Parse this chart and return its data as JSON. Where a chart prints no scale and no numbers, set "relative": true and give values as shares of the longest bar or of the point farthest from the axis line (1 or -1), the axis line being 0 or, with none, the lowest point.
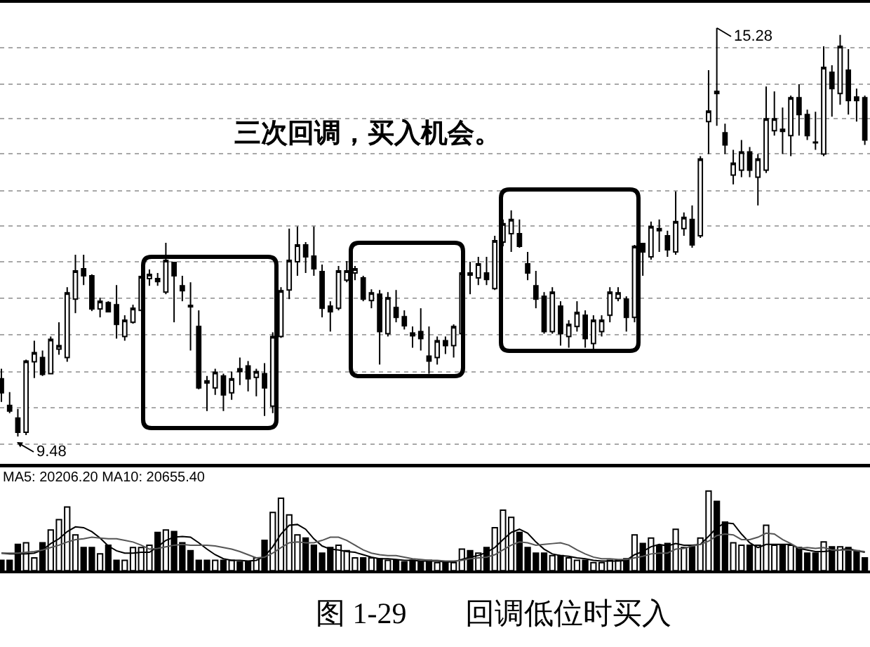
{
  "chart_data": [
    {
      "type": "candlestick",
      "categories": [
        null,
        null,
        null,
        null,
        null,
        null,
        null,
        null,
        null,
        null,
        null,
        null,
        null,
        null,
        null,
        null,
        null,
        null,
        null,
        null,
        null,
        null,
        null,
        null,
        null,
        null,
        null,
        null,
        null,
        null,
        null,
        null,
        null,
        null,
        null,
        null,
        null,
        null,
        null,
        null,
        null,
        null,
        null,
        null,
        null,
        null,
        null,
        null,
        null,
        null,
        null,
        null,
        null,
        null,
        null,
        null,
        null,
        null,
        null,
        null,
        null,
        null,
        null,
        null,
        null,
        null,
        null,
        null,
        null,
        null,
        null,
        null,
        null,
        null,
        null,
        null,
        null,
        null,
        null,
        null,
        null,
        null,
        null,
        null,
        null,
        null,
        null,
        null,
        null,
        null,
        null,
        null,
        null,
        null,
        null,
        null,
        null,
        null,
        null,
        null,
        null,
        null,
        null,
        null,
        null,
        null
      ],
      "ohlc": [
        [
          10.3,
          10.44,
          9.97,
          10.1
        ],
        [
          9.92,
          10.11,
          9.81,
          9.84
        ],
        [
          9.74,
          9.87,
          9.48,
          9.54
        ],
        [
          9.54,
          10.57,
          9.5,
          10.55
        ],
        [
          10.54,
          10.84,
          10.31,
          10.67
        ],
        [
          10.6,
          10.7,
          10.34,
          10.36
        ],
        [
          10.37,
          10.9,
          10.36,
          10.86
        ],
        [
          10.72,
          11.1,
          10.64,
          10.77
        ],
        [
          10.6,
          11.6,
          10.54,
          11.52
        ],
        [
          11.43,
          12.06,
          11.23,
          11.83
        ],
        [
          11.86,
          12.06,
          11.63,
          11.76
        ],
        [
          11.76,
          11.78,
          11.26,
          11.29
        ],
        [
          11.29,
          11.45,
          11.17,
          11.4
        ],
        [
          11.38,
          11.4,
          11.24,
          11.25
        ],
        [
          11.35,
          11.63,
          10.87,
          11.07
        ],
        [
          10.9,
          11.2,
          10.84,
          11.13
        ],
        [
          11.1,
          11.35,
          11.08,
          11.3
        ],
        [
          11.27,
          11.76,
          11.26,
          11.75
        ],
        [
          11.72,
          11.85,
          11.62,
          11.78
        ],
        [
          11.72,
          11.8,
          11.62,
          11.68
        ],
        [
          11.53,
          12.23,
          11.5,
          11.98
        ],
        [
          11.95,
          11.96,
          11.1,
          11.76
        ],
        [
          11.62,
          11.76,
          11.4,
          11.55
        ],
        [
          11.34,
          11.67,
          10.7,
          11.32
        ],
        [
          11.04,
          11.27,
          10.15,
          10.17
        ],
        [
          10.27,
          10.34,
          9.84,
          10.24
        ],
        [
          10.17,
          10.44,
          10.07,
          10.39
        ],
        [
          10.34,
          10.37,
          9.84,
          10.07
        ],
        [
          10.1,
          10.4,
          10.0,
          10.3
        ],
        [
          10.44,
          10.6,
          10.21,
          10.4
        ],
        [
          10.48,
          10.55,
          10.12,
          10.3
        ],
        [
          10.32,
          10.44,
          10.05,
          10.4
        ],
        [
          10.37,
          10.52,
          9.77,
          10.17
        ],
        [
          9.91,
          10.96,
          9.81,
          10.9
        ],
        [
          10.9,
          11.6,
          10.88,
          11.55
        ],
        [
          11.56,
          12.43,
          11.43,
          11.98
        ],
        [
          11.96,
          12.46,
          11.76,
          12.2
        ],
        [
          12.2,
          12.24,
          11.8,
          12.03
        ],
        [
          12.04,
          12.46,
          11.76,
          11.86
        ],
        [
          11.82,
          11.92,
          11.17,
          11.3
        ],
        [
          11.33,
          11.4,
          10.97,
          11.25
        ],
        [
          11.3,
          11.9,
          11.27,
          11.83
        ],
        [
          11.7,
          11.97,
          11.67,
          11.83
        ],
        [
          11.8,
          11.9,
          11.7,
          11.86
        ],
        [
          11.73,
          11.76,
          11.4,
          11.43
        ],
        [
          11.41,
          11.57,
          11.3,
          11.52
        ],
        [
          11.5,
          11.56,
          10.5,
          10.97
        ],
        [
          10.94,
          11.53,
          10.9,
          11.45
        ],
        [
          11.31,
          11.56,
          11.1,
          11.17
        ],
        [
          11.18,
          11.27,
          11.0,
          11.05
        ],
        [
          10.95,
          11.04,
          10.74,
          10.91
        ],
        [
          10.97,
          11.3,
          10.7,
          10.87
        ],
        [
          10.62,
          11.04,
          10.37,
          10.55
        ],
        [
          10.6,
          10.9,
          10.5,
          10.84
        ],
        [
          10.84,
          10.9,
          10.65,
          10.77
        ],
        [
          10.77,
          11.07,
          10.6,
          11.04
        ],
        [
          10.94,
          11.82,
          10.9,
          11.8
        ],
        [
          11.8,
          11.96,
          11.5,
          11.77
        ],
        [
          11.73,
          12.03,
          11.63,
          11.93
        ],
        [
          11.8,
          12.03,
          11.63,
          11.71
        ],
        [
          11.58,
          12.33,
          11.56,
          12.26
        ],
        [
          12.24,
          12.56,
          12.18,
          12.5
        ],
        [
          12.36,
          12.69,
          12.1,
          12.56
        ],
        [
          12.36,
          12.56,
          12.16,
          12.18
        ],
        [
          11.93,
          12.1,
          11.7,
          11.8
        ],
        [
          11.62,
          11.83,
          11.3,
          11.43
        ],
        [
          11.47,
          11.53,
          10.94,
          10.97
        ],
        [
          10.97,
          11.6,
          10.94,
          11.53
        ],
        [
          11.33,
          11.4,
          10.77,
          10.94
        ],
        [
          10.9,
          11.13,
          10.74,
          11.07
        ],
        [
          11.04,
          11.4,
          10.97,
          11.24
        ],
        [
          11.2,
          11.27,
          10.74,
          10.87
        ],
        [
          10.8,
          11.2,
          10.7,
          11.13
        ],
        [
          10.97,
          11.2,
          10.9,
          11.13
        ],
        [
          11.2,
          11.6,
          11.1,
          11.53
        ],
        [
          11.44,
          11.6,
          11.4,
          11.52
        ],
        [
          11.43,
          11.47,
          10.97,
          11.17
        ],
        [
          11.17,
          12.2,
          11.1,
          12.18
        ],
        [
          12.22,
          12.23,
          11.76,
          12.1
        ],
        [
          12.03,
          12.53,
          11.99,
          12.46
        ],
        [
          12.43,
          12.56,
          12.1,
          12.4
        ],
        [
          12.33,
          12.4,
          12.03,
          12.13
        ],
        [
          12.1,
          12.96,
          12.06,
          12.53
        ],
        [
          12.43,
          12.66,
          12.33,
          12.59
        ],
        [
          12.56,
          12.76,
          12.16,
          12.2
        ],
        [
          12.33,
          13.46,
          12.3,
          13.42
        ],
        [
          13.95,
          14.68,
          13.49,
          14.1
        ],
        [
          14.38,
          15.28,
          13.89,
          14.35
        ],
        [
          13.79,
          13.92,
          13.49,
          13.62
        ],
        [
          13.19,
          13.55,
          13.06,
          13.36
        ],
        [
          13.26,
          13.69,
          13.16,
          13.52
        ],
        [
          13.52,
          13.59,
          13.16,
          13.26
        ],
        [
          13.16,
          13.49,
          12.76,
          13.42
        ],
        [
          13.26,
          14.45,
          13.22,
          13.99
        ],
        [
          13.82,
          14.38,
          13.75,
          13.99
        ],
        [
          13.84,
          14.15,
          13.49,
          13.81
        ],
        [
          13.75,
          14.32,
          13.46,
          14.29
        ],
        [
          14.29,
          14.48,
          13.75,
          14.05
        ],
        [
          14.05,
          14.12,
          13.69,
          13.75
        ],
        [
          13.66,
          14.09,
          13.55,
          13.65
        ],
        [
          13.49,
          15.02,
          13.46,
          14.72
        ],
        [
          14.65,
          14.75,
          14.02,
          14.42
        ],
        [
          14.35,
          15.18,
          14.19,
          15.02
        ],
        [
          14.68,
          14.98,
          14.05,
          14.25
        ],
        [
          14.3,
          14.42,
          13.95,
          14.25
        ],
        [
          14.29,
          14.32,
          13.62,
          13.69
        ]
      ],
      "color": "#000000",
      "colors": [
        "#000000",
        "#000000",
        "#000000",
        "#ffffff",
        "#ffffff",
        "#000000",
        "#ffffff",
        "#ffffff",
        "#ffffff",
        "#ffffff",
        "#000000",
        "#000000",
        "#ffffff",
        "#000000",
        "#000000",
        "#ffffff",
        "#ffffff",
        "#ffffff",
        "#ffffff",
        "#000000",
        "#ffffff",
        "#000000",
        "#000000",
        "#000000",
        "#000000",
        "#000000",
        "#ffffff",
        "#000000",
        "#ffffff",
        "#000000",
        "#000000",
        "#ffffff",
        "#000000",
        "#ffffff",
        "#ffffff",
        "#ffffff",
        "#ffffff",
        "#000000",
        "#000000",
        "#000000",
        "#000000",
        "#ffffff",
        "#ffffff",
        "#ffffff",
        "#000000",
        "#ffffff",
        "#000000",
        "#ffffff",
        "#000000",
        "#000000",
        "#000000",
        "#000000",
        "#000000",
        "#ffffff",
        "#000000",
        "#ffffff",
        "#ffffff",
        "#000000",
        "#ffffff",
        "#000000",
        "#ffffff",
        "#ffffff",
        "#ffffff",
        "#000000",
        "#000000",
        "#000000",
        "#000000",
        "#ffffff",
        "#000000",
        "#ffffff",
        "#ffffff",
        "#000000",
        "#ffffff",
        "#ffffff",
        "#ffffff",
        "#ffffff",
        "#000000",
        "#ffffff",
        "#000000",
        "#ffffff",
        "#000000",
        "#000000",
        "#ffffff",
        "#ffffff",
        "#000000",
        "#ffffff",
        "#ffffff",
        "#000000",
        "#000000",
        "#ffffff",
        "#ffffff",
        "#000000",
        "#ffffff",
        "#ffffff",
        "#ffffff",
        "#000000",
        "#ffffff",
        "#000000",
        "#000000",
        "#000000",
        "#ffffff",
        "#000000",
        "#ffffff",
        "#000000",
        "#000000",
        "#000000"
      ],
      "ylim": [
        9.09,
        15.64
      ],
      "yticks": [
        {
          "value": 15.0,
          "label": null
        },
        {
          "value": 14.48,
          "label": null
        },
        {
          "value": 13.99,
          "label": null
        },
        {
          "value": 13.49,
          "label": null
        },
        {
          "value": 12.97,
          "label": null
        },
        {
          "value": 12.47,
          "label": null
        },
        {
          "value": 11.96,
          "label": null
        },
        {
          "value": 11.44,
          "label": null
        },
        {
          "value": 10.92,
          "label": null
        },
        {
          "value": 10.4,
          "label": null
        },
        {
          "value": 9.89,
          "label": null
        },
        {
          "value": 9.37,
          "label": null
        }
      ],
      "grid": "y",
      "annotations": [
        "三次回调，买入机会。",
        "15.28",
        "9.48"
      ]
    },
    {
      "type": "bar",
      "relative": true,
      "categories": [
        null,
        null,
        null,
        null,
        null,
        null,
        null,
        null,
        null,
        null,
        null,
        null,
        null,
        null,
        null,
        null,
        null,
        null,
        null,
        null,
        null,
        null,
        null,
        null,
        null,
        null,
        null,
        null,
        null,
        null,
        null,
        null,
        null,
        null,
        null,
        null,
        null,
        null,
        null,
        null,
        null,
        null,
        null,
        null,
        null,
        null,
        null,
        null,
        null,
        null,
        null,
        null,
        null,
        null,
        null,
        null,
        null,
        null,
        null,
        null,
        null,
        null,
        null,
        null,
        null,
        null,
        null,
        null,
        null,
        null,
        null,
        null,
        null,
        null,
        null,
        null,
        null,
        null,
        null,
        null,
        null,
        null,
        null,
        null,
        null,
        null,
        null,
        null,
        null,
        null,
        null,
        null,
        null,
        null,
        null,
        null,
        null,
        null,
        null,
        null,
        null,
        null,
        null,
        null,
        null,
        null
      ],
      "series": [
        {
          "type": "bar",
          "color": "#000000",
          "colors": [
            "#000000",
            "#000000",
            "#000000",
            "#ffffff",
            "#ffffff",
            "#000000",
            "#ffffff",
            "#ffffff",
            "#ffffff",
            "#ffffff",
            "#000000",
            "#000000",
            "#ffffff",
            "#000000",
            "#000000",
            "#ffffff",
            "#ffffff",
            "#ffffff",
            "#ffffff",
            "#000000",
            "#ffffff",
            "#000000",
            "#000000",
            "#000000",
            "#000000",
            "#000000",
            "#ffffff",
            "#000000",
            "#ffffff",
            "#000000",
            "#000000",
            "#ffffff",
            "#000000",
            "#ffffff",
            "#ffffff",
            "#ffffff",
            "#ffffff",
            "#000000",
            "#000000",
            "#000000",
            "#000000",
            "#ffffff",
            "#ffffff",
            "#ffffff",
            "#000000",
            "#ffffff",
            "#000000",
            "#ffffff",
            "#000000",
            "#000000",
            "#000000",
            "#000000",
            "#000000",
            "#ffffff",
            "#000000",
            "#ffffff",
            "#ffffff",
            "#000000",
            "#ffffff",
            "#000000",
            "#ffffff",
            "#ffffff",
            "#ffffff",
            "#000000",
            "#000000",
            "#000000",
            "#000000",
            "#ffffff",
            "#000000",
            "#ffffff",
            "#ffffff",
            "#000000",
            "#ffffff",
            "#ffffff",
            "#ffffff",
            "#ffffff",
            "#000000",
            "#ffffff",
            "#000000",
            "#ffffff",
            "#000000",
            "#000000",
            "#ffffff",
            "#ffffff",
            "#000000",
            "#ffffff",
            "#ffffff",
            "#000000",
            "#000000",
            "#ffffff",
            "#ffffff",
            "#000000",
            "#ffffff",
            "#ffffff",
            "#ffffff",
            "#000000",
            "#ffffff",
            "#000000",
            "#000000",
            "#000000",
            "#ffffff",
            "#000000",
            "#ffffff",
            "#000000",
            "#000000",
            "#000000"
          ],
          "values": [
            0.13,
            0.13,
            0.33,
            0.35,
            0.16,
            0.35,
            0.51,
            0.64,
            0.8,
            0.45,
            0.29,
            0.29,
            0.21,
            0.32,
            0.13,
            0.13,
            0.29,
            0.29,
            0.32,
            0.48,
            0.51,
            0.49,
            0.35,
            0.25,
            0.13,
            0.13,
            0.13,
            0.13,
            0.13,
            0.11,
            0.11,
            0.16,
            0.38,
            0.73,
            0.91,
            0.7,
            0.45,
            0.41,
            0.32,
            0.22,
            0.29,
            0.32,
            0.25,
            0.16,
            0.16,
            0.16,
            0.15,
            0.13,
            0.13,
            0.11,
            0.13,
            0.11,
            0.13,
            0.1,
            0.1,
            0.1,
            0.27,
            0.25,
            0.22,
            0.29,
            0.54,
            0.76,
            0.67,
            0.48,
            0.29,
            0.22,
            0.22,
            0.19,
            0.19,
            0.16,
            0.13,
            0.13,
            0.1,
            0.1,
            0.13,
            0.13,
            0.15,
            0.45,
            0.34,
            0.41,
            0.32,
            0.34,
            0.52,
            0.29,
            0.3,
            0.41,
            1.0,
            0.87,
            0.61,
            0.35,
            0.32,
            0.32,
            0.32,
            0.57,
            0.32,
            0.32,
            0.32,
            0.29,
            0.22,
            0.22,
            0.36,
            0.3,
            0.3,
            0.29,
            0.25,
            0.16
          ]
        },
        {
          "type": "line",
          "color": "#000000",
          "values": [
            0.22,
            0.21,
            0.21,
            0.21,
            0.22,
            0.26,
            0.34,
            0.4,
            0.49,
            0.55,
            0.54,
            0.49,
            0.41,
            0.31,
            0.25,
            0.22,
            0.22,
            0.23,
            0.23,
            0.3,
            0.38,
            0.42,
            0.43,
            0.42,
            0.35,
            0.27,
            0.2,
            0.15,
            0.13,
            0.13,
            0.12,
            0.13,
            0.18,
            0.3,
            0.46,
            0.57,
            0.58,
            0.52,
            0.4,
            0.31,
            0.27,
            0.26,
            0.24,
            0.23,
            0.2,
            0.17,
            0.15,
            0.15,
            0.14,
            0.13,
            0.13,
            0.12,
            0.12,
            0.12,
            0.11,
            0.11,
            0.14,
            0.17,
            0.19,
            0.23,
            0.29,
            0.39,
            0.48,
            0.52,
            0.47,
            0.36,
            0.27,
            0.21,
            0.19,
            0.18,
            0.16,
            0.15,
            0.13,
            0.12,
            0.12,
            0.12,
            0.13,
            0.2,
            0.24,
            0.3,
            0.33,
            0.31,
            0.34,
            0.32,
            0.32,
            0.33,
            0.43,
            0.54,
            0.6,
            0.59,
            0.46,
            0.35,
            0.29,
            0.33,
            0.33,
            0.33,
            0.33,
            0.28,
            0.26,
            0.24,
            0.24,
            0.25,
            0.26,
            0.28,
            0.25,
            0.23
          ]
        },
        {
          "type": "line",
          "color": "#555555",
          "values": [
            0.22,
            0.22,
            0.22,
            0.23,
            0.24,
            0.26,
            0.29,
            0.32,
            0.36,
            0.39,
            0.4,
            0.42,
            0.41,
            0.4,
            0.4,
            0.38,
            0.36,
            0.32,
            0.27,
            0.28,
            0.3,
            0.32,
            0.33,
            0.32,
            0.32,
            0.32,
            0.31,
            0.29,
            0.27,
            0.24,
            0.2,
            0.16,
            0.17,
            0.22,
            0.29,
            0.35,
            0.36,
            0.35,
            0.35,
            0.38,
            0.42,
            0.42,
            0.38,
            0.32,
            0.26,
            0.22,
            0.2,
            0.19,
            0.19,
            0.17,
            0.15,
            0.14,
            0.13,
            0.13,
            0.12,
            0.12,
            0.13,
            0.15,
            0.16,
            0.17,
            0.2,
            0.26,
            0.32,
            0.36,
            0.35,
            0.32,
            0.33,
            0.34,
            0.35,
            0.32,
            0.26,
            0.21,
            0.17,
            0.15,
            0.15,
            0.14,
            0.14,
            0.16,
            0.18,
            0.21,
            0.22,
            0.22,
            0.27,
            0.28,
            0.31,
            0.33,
            0.37,
            0.44,
            0.46,
            0.45,
            0.39,
            0.39,
            0.42,
            0.47,
            0.46,
            0.39,
            0.34,
            0.28,
            0.29,
            0.28,
            0.29,
            0.26,
            0.26,
            0.26,
            0.25,
            0.24
          ]
        }
      ],
      "annotations": [
        "MA5: 20206.20 MA10: 20655.40",
        "图 1-29　　回调低位时买入"
      ]
    }
  ]
}
